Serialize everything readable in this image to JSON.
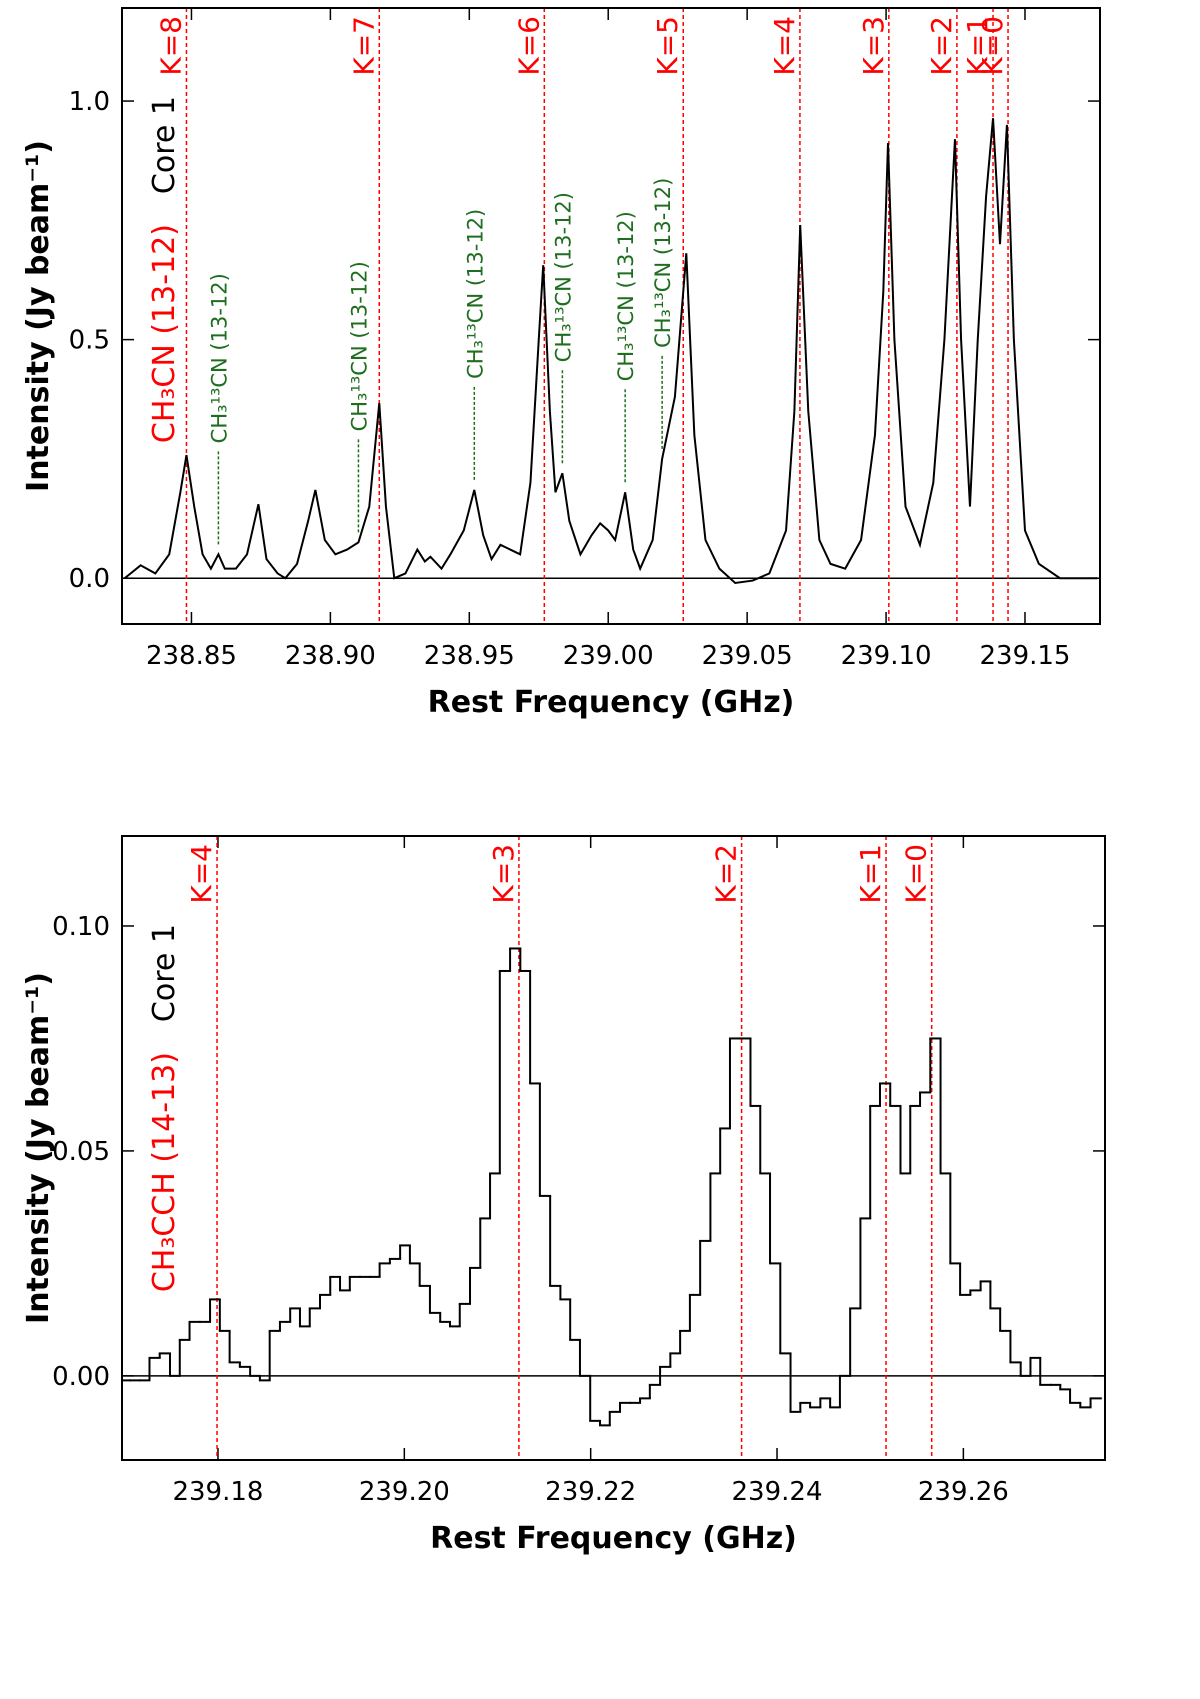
{
  "chart_data": [
    {
      "type": "line",
      "xlabel": "Rest Frequency (GHz)",
      "ylabel": "Intensity (Jy beam⁻¹)",
      "color": "#000000",
      "xlim": [
        238.825,
        239.177
      ],
      "ylim": [
        -0.096,
        1.195
      ],
      "xticks": [
        238.85,
        {
          "value": 238.9,
          "label": "238.90"
        },
        238.95,
        {
          "value": 239.0,
          "label": "239.00"
        },
        239.05,
        {
          "value": 239.1,
          "label": "239.10"
        },
        239.15
      ],
      "yticks": [
        {
          "value": 0,
          "label": "0.0"
        },
        0.5,
        {
          "value": 1,
          "label": "1.0"
        }
      ],
      "zero_line": true,
      "x": [
        238.826,
        238.8317,
        238.837,
        238.842,
        238.846,
        238.8482,
        238.851,
        238.854,
        238.857,
        238.8597,
        238.862,
        238.866,
        238.87,
        238.8741,
        238.877,
        238.881,
        238.8838,
        238.888,
        238.892,
        238.8946,
        238.898,
        238.9018,
        238.906,
        238.9101,
        238.914,
        238.9176,
        238.92,
        238.923,
        238.927,
        238.9313,
        238.934,
        238.936,
        238.94,
        238.9432,
        238.948,
        238.9518,
        238.955,
        238.958,
        238.9612,
        238.9683,
        238.972,
        238.975,
        238.9766,
        238.979,
        238.981,
        238.9835,
        238.986,
        238.99,
        238.994,
        238.9971,
        239.0,
        239.0025,
        239.0061,
        239.009,
        239.0115,
        239.016,
        239.0194,
        239.024,
        239.0281,
        239.031,
        239.035,
        239.04,
        239.0457,
        239.052,
        239.058,
        239.064,
        239.067,
        239.0691,
        239.072,
        239.076,
        239.08,
        239.0853,
        239.091,
        239.096,
        239.099,
        239.1007,
        239.103,
        239.107,
        239.1122,
        239.117,
        239.121,
        239.1248,
        239.127,
        239.1302,
        239.133,
        239.136,
        239.1385,
        239.141,
        239.1435,
        239.146,
        239.15,
        239.155,
        239.1626,
        239.17,
        239.176
      ],
      "values": [
        0.0,
        0.027,
        0.01,
        0.05,
        0.18,
        0.258,
        0.15,
        0.05,
        0.02,
        0.05,
        0.02,
        0.02,
        0.05,
        0.155,
        0.04,
        0.01,
        0.0,
        0.03,
        0.12,
        0.185,
        0.08,
        0.05,
        0.06,
        0.075,
        0.15,
        0.367,
        0.15,
        0.0,
        0.01,
        0.06,
        0.035,
        0.045,
        0.02,
        0.05,
        0.1,
        0.185,
        0.09,
        0.04,
        0.07,
        0.05,
        0.2,
        0.5,
        0.656,
        0.35,
        0.18,
        0.22,
        0.12,
        0.05,
        0.09,
        0.115,
        0.1,
        0.08,
        0.18,
        0.06,
        0.02,
        0.08,
        0.25,
        0.38,
        0.681,
        0.3,
        0.08,
        0.02,
        -0.01,
        -0.005,
        0.01,
        0.1,
        0.35,
        0.74,
        0.35,
        0.08,
        0.03,
        0.02,
        0.08,
        0.3,
        0.6,
        0.912,
        0.5,
        0.15,
        0.07,
        0.2,
        0.5,
        0.92,
        0.5,
        0.15,
        0.5,
        0.8,
        0.964,
        0.7,
        0.95,
        0.5,
        0.1,
        0.03,
        0.0,
        0.0,
        0.0
      ],
      "marker_color": "#ff0000",
      "markers": [
        {
          "label": "K=8",
          "x": 238.8482
        },
        {
          "label": "K=7",
          "x": 238.9176
        },
        {
          "label": "K=6",
          "x": 238.977
        },
        {
          "label": "K=5",
          "x": 239.027
        },
        {
          "label": "K=4",
          "x": 239.069
        },
        {
          "label": "K=3",
          "x": 239.101
        },
        {
          "label": "K=2",
          "x": 239.1255
        },
        {
          "label": "K=1",
          "x": 239.1385
        },
        {
          "label": "K=0",
          "x": 239.1439
        }
      ],
      "side_labels": [
        {
          "text": "Core 1",
          "color": "#000000"
        },
        {
          "text": "CH₃CN (13-12)",
          "color": "#ff0000"
        }
      ],
      "annotation_color": "#1f6e1f",
      "annotations": [
        {
          "text": "CH₃¹³CN (13-12)",
          "x": 238.8597
        },
        {
          "text": "CH₃¹³CN (13-12)",
          "x": 238.9101
        },
        {
          "text": "CH₃¹³CN (13-12)",
          "x": 238.9518
        },
        {
          "text": "CH₃¹³CN (13-12)",
          "x": 238.9835
        },
        {
          "text": "CH₃¹³CN (13-12)",
          "x": 239.0061
        },
        {
          "text": "CH₃¹³CN (13-12)",
          "x": 239.0194
        }
      ]
    },
    {
      "type": "line",
      "drawstyle": "steps-mid",
      "xlabel": "Rest Frequency (GHz)",
      "ylabel": "Intensity (Jy beam⁻¹)",
      "color": "#000000",
      "xlim": [
        239.1697,
        239.2752
      ],
      "ylim": [
        -0.0187,
        0.12
      ],
      "xticks": [
        239.18,
        {
          "value": 239.2,
          "label": "239.20"
        },
        239.22,
        239.24,
        239.26
      ],
      "yticks": [
        {
          "value": 0,
          "label": "0.00"
        },
        0.05,
        {
          "value": 0.1,
          "label": "0.10"
        }
      ],
      "zero_line": true,
      "x": [
        239.17,
        239.1711,
        239.1721,
        239.1732,
        239.1743,
        239.1754,
        239.1764,
        239.1775,
        239.1786,
        239.1797,
        239.1807,
        239.1818,
        239.1829,
        239.184,
        239.185,
        239.1861,
        239.1872,
        239.1883,
        239.1893,
        239.1904,
        239.1915,
        239.1926,
        239.1936,
        239.1947,
        239.1958,
        239.1968,
        239.1979,
        239.199,
        239.2001,
        239.2011,
        239.2022,
        239.2033,
        239.2044,
        239.2054,
        239.2065,
        239.2076,
        239.2087,
        239.2097,
        239.2108,
        239.2119,
        239.213,
        239.214,
        239.2151,
        239.2162,
        239.2173,
        239.2183,
        239.2194,
        239.2205,
        239.2215,
        239.2226,
        239.2237,
        239.2248,
        239.2258,
        239.2269,
        239.228,
        239.2291,
        239.2301,
        239.2312,
        239.2323,
        239.2334,
        239.2344,
        239.2355,
        239.2366,
        239.2377,
        239.2387,
        239.2398,
        239.2409,
        239.242,
        239.243,
        239.2441,
        239.2452,
        239.2462,
        239.2473,
        239.2484,
        239.2495,
        239.2505,
        239.2516,
        239.2527,
        239.2538,
        239.2548,
        239.2559,
        239.257,
        239.2581,
        239.2591,
        239.2602,
        239.2613,
        239.2624,
        239.2634,
        239.2645,
        239.2656,
        239.2667,
        239.2677,
        239.2688,
        239.2699,
        239.2709,
        239.272,
        239.2731,
        239.2742
      ],
      "values": [
        -0.001,
        -0.001,
        -0.001,
        0.004,
        0.005,
        0.0,
        0.008,
        0.012,
        0.012,
        0.017,
        0.01,
        0.003,
        0.002,
        0.0,
        -0.001,
        0.01,
        0.012,
        0.015,
        0.011,
        0.015,
        0.018,
        0.022,
        0.019,
        0.022,
        0.022,
        0.022,
        0.025,
        0.026,
        0.029,
        0.025,
        0.02,
        0.014,
        0.012,
        0.011,
        0.016,
        0.024,
        0.035,
        0.045,
        0.09,
        0.095,
        0.09,
        0.065,
        0.04,
        0.02,
        0.017,
        0.008,
        0.0,
        -0.01,
        -0.011,
        -0.008,
        -0.006,
        -0.006,
        -0.005,
        -0.002,
        0.002,
        0.005,
        0.01,
        0.018,
        0.03,
        0.045,
        0.055,
        0.075,
        0.075,
        0.06,
        0.045,
        0.025,
        0.005,
        -0.008,
        -0.006,
        -0.007,
        -0.005,
        -0.007,
        0.0,
        0.015,
        0.035,
        0.06,
        0.065,
        0.06,
        0.045,
        0.06,
        0.063,
        0.075,
        0.045,
        0.025,
        0.018,
        0.019,
        0.021,
        0.015,
        0.01,
        0.003,
        0.0,
        0.004,
        -0.002,
        -0.002,
        -0.003,
        -0.006,
        -0.007,
        -0.005
      ],
      "marker_color": "#ff0000",
      "markers": [
        {
          "label": "K=4",
          "x": 239.1799
        },
        {
          "label": "K=3",
          "x": 239.2123
        },
        {
          "label": "K=2",
          "x": 239.2362
        },
        {
          "label": "K=1",
          "x": 239.2517
        },
        {
          "label": "K=0",
          "x": 239.2566
        }
      ],
      "side_labels": [
        {
          "text": "Core 1",
          "color": "#000000"
        },
        {
          "text": "CH₃CCH (14-13)",
          "color": "#ff0000"
        }
      ]
    }
  ]
}
